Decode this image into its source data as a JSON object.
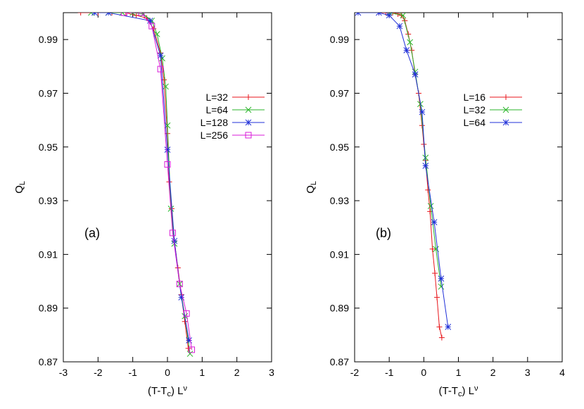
{
  "chart_data": [
    {
      "type": "line",
      "panel_label": "(a)",
      "xlabel": "(T-T_c) L^ν",
      "ylabel": "Q_L",
      "xlim": [
        -3,
        3
      ],
      "ylim": [
        0.87,
        1.0
      ],
      "x_ticks": [
        "-3",
        "-2",
        "-1",
        "0",
        "1",
        "2",
        "3"
      ],
      "y_ticks": [
        "0.87",
        "0.89",
        "0.91",
        "0.93",
        "0.95",
        "0.97",
        "0.99"
      ],
      "legend_position": "right",
      "series": [
        {
          "name": "L=32",
          "color": "#e8161b",
          "marker": "plus",
          "x": [
            -2.5,
            -2.0,
            -1.6,
            -1.2,
            -0.9,
            -0.6,
            -0.4,
            -0.2,
            -0.1,
            0.0,
            0.05,
            0.12,
            0.2,
            0.3,
            0.4,
            0.5,
            0.6
          ],
          "y": [
            1.0,
            1.0,
            1.0,
            1.0,
            0.999,
            0.998,
            0.994,
            0.985,
            0.975,
            0.955,
            0.937,
            0.927,
            0.915,
            0.905,
            0.895,
            0.885,
            0.875
          ]
        },
        {
          "name": "L=64",
          "color": "#2bb52b",
          "marker": "cross",
          "x": [
            -2.2,
            -1.7,
            -1.3,
            -1.0,
            -0.7,
            -0.45,
            -0.3,
            -0.15,
            -0.05,
            0.0,
            0.1,
            0.2,
            0.35,
            0.5,
            0.65
          ],
          "y": [
            1.0,
            1.0,
            1.0,
            1.0,
            0.9995,
            0.997,
            0.992,
            0.983,
            0.9725,
            0.958,
            0.927,
            0.914,
            0.899,
            0.887,
            0.873
          ]
        },
        {
          "name": "L=128",
          "color": "#2030d8",
          "marker": "star",
          "x": [
            -2.1,
            -1.7,
            -0.5,
            -0.2,
            0.0,
            0.2,
            0.4,
            0.62
          ],
          "y": [
            1.0,
            1.0,
            0.997,
            0.984,
            0.949,
            0.915,
            0.894,
            0.878
          ]
        },
        {
          "name": "L=256",
          "color": "#d81bd8",
          "marker": "square",
          "x": [
            -1.25,
            -0.75,
            -0.45,
            -0.2,
            0.0,
            0.15,
            0.35,
            0.55,
            0.7
          ],
          "y": [
            1.0,
            1.0,
            0.995,
            0.979,
            0.9435,
            0.918,
            0.899,
            0.888,
            0.8745
          ]
        }
      ]
    },
    {
      "type": "line",
      "panel_label": "(b)",
      "xlabel": "(T-T_c) L^ν",
      "ylabel": "Q_L",
      "xlim": [
        -2,
        4
      ],
      "ylim": [
        0.87,
        1.0
      ],
      "x_ticks": [
        "-2",
        "-1",
        "0",
        "1",
        "2",
        "3",
        "4"
      ],
      "y_ticks": [
        "0.87",
        "0.89",
        "0.91",
        "0.93",
        "0.95",
        "0.97",
        "0.99"
      ],
      "legend_position": "right",
      "series": [
        {
          "name": "L=16",
          "color": "#e8161b",
          "marker": "plus",
          "x": [
            -1.3,
            -1.1,
            -0.9,
            -0.75,
            -0.65,
            -0.55,
            -0.45,
            -0.35,
            -0.25,
            -0.15,
            -0.05,
            0.0,
            0.05,
            0.12,
            0.18,
            0.25,
            0.32,
            0.38,
            0.45,
            0.52
          ],
          "y": [
            1.0,
            1.0,
            1.0,
            0.9995,
            0.999,
            0.997,
            0.992,
            0.986,
            0.977,
            0.97,
            0.958,
            0.951,
            0.945,
            0.934,
            0.926,
            0.912,
            0.903,
            0.894,
            0.883,
            0.879
          ]
        },
        {
          "name": "L=32",
          "color": "#2bb52b",
          "marker": "cross",
          "x": [
            -1.0,
            -0.6,
            -0.4,
            -0.25,
            -0.1,
            0.05,
            0.2,
            0.35,
            0.5
          ],
          "y": [
            1.0,
            0.999,
            0.989,
            0.978,
            0.966,
            0.946,
            0.928,
            0.912,
            0.898
          ]
        },
        {
          "name": "L=64",
          "color": "#2030d8",
          "marker": "star",
          "x": [
            -1.9,
            -1.3,
            -1.0,
            -0.7,
            -0.5,
            -0.25,
            -0.05,
            0.05,
            0.3,
            0.5,
            0.7
          ],
          "y": [
            1.0,
            1.0,
            0.999,
            0.995,
            0.986,
            0.977,
            0.963,
            0.943,
            0.922,
            0.901,
            0.883
          ]
        }
      ]
    }
  ]
}
